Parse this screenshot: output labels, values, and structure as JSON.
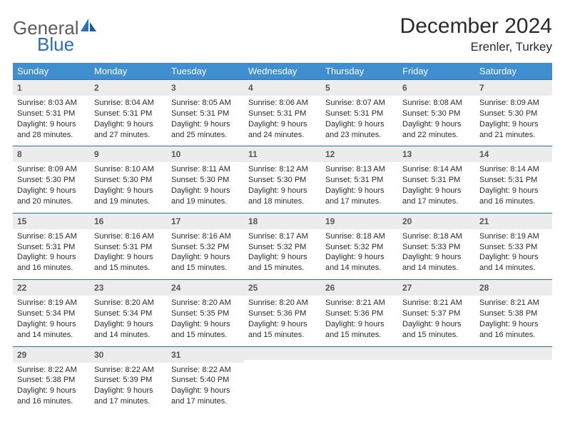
{
  "brand": {
    "general": "General",
    "blue": "Blue"
  },
  "title": "December 2024",
  "location": "Erenler, Turkey",
  "colors": {
    "header_bg": "#3f8fd0",
    "header_text": "#ffffff",
    "week_border": "#2970b8",
    "daynum_bg": "#ececec",
    "daynum_text": "#565656",
    "body_text": "#2b2b2b",
    "logo_gray": "#5c5c5c",
    "logo_blue": "#2970b8",
    "page_bg": "#ffffff"
  },
  "day_headers": [
    "Sunday",
    "Monday",
    "Tuesday",
    "Wednesday",
    "Thursday",
    "Friday",
    "Saturday"
  ],
  "weeks": [
    [
      {
        "num": "1",
        "sunrise": "Sunrise: 8:03 AM",
        "sunset": "Sunset: 5:31 PM",
        "day1": "Daylight: 9 hours",
        "day2": "and 28 minutes."
      },
      {
        "num": "2",
        "sunrise": "Sunrise: 8:04 AM",
        "sunset": "Sunset: 5:31 PM",
        "day1": "Daylight: 9 hours",
        "day2": "and 27 minutes."
      },
      {
        "num": "3",
        "sunrise": "Sunrise: 8:05 AM",
        "sunset": "Sunset: 5:31 PM",
        "day1": "Daylight: 9 hours",
        "day2": "and 25 minutes."
      },
      {
        "num": "4",
        "sunrise": "Sunrise: 8:06 AM",
        "sunset": "Sunset: 5:31 PM",
        "day1": "Daylight: 9 hours",
        "day2": "and 24 minutes."
      },
      {
        "num": "5",
        "sunrise": "Sunrise: 8:07 AM",
        "sunset": "Sunset: 5:31 PM",
        "day1": "Daylight: 9 hours",
        "day2": "and 23 minutes."
      },
      {
        "num": "6",
        "sunrise": "Sunrise: 8:08 AM",
        "sunset": "Sunset: 5:30 PM",
        "day1": "Daylight: 9 hours",
        "day2": "and 22 minutes."
      },
      {
        "num": "7",
        "sunrise": "Sunrise: 8:09 AM",
        "sunset": "Sunset: 5:30 PM",
        "day1": "Daylight: 9 hours",
        "day2": "and 21 minutes."
      }
    ],
    [
      {
        "num": "8",
        "sunrise": "Sunrise: 8:09 AM",
        "sunset": "Sunset: 5:30 PM",
        "day1": "Daylight: 9 hours",
        "day2": "and 20 minutes."
      },
      {
        "num": "9",
        "sunrise": "Sunrise: 8:10 AM",
        "sunset": "Sunset: 5:30 PM",
        "day1": "Daylight: 9 hours",
        "day2": "and 19 minutes."
      },
      {
        "num": "10",
        "sunrise": "Sunrise: 8:11 AM",
        "sunset": "Sunset: 5:30 PM",
        "day1": "Daylight: 9 hours",
        "day2": "and 19 minutes."
      },
      {
        "num": "11",
        "sunrise": "Sunrise: 8:12 AM",
        "sunset": "Sunset: 5:30 PM",
        "day1": "Daylight: 9 hours",
        "day2": "and 18 minutes."
      },
      {
        "num": "12",
        "sunrise": "Sunrise: 8:13 AM",
        "sunset": "Sunset: 5:31 PM",
        "day1": "Daylight: 9 hours",
        "day2": "and 17 minutes."
      },
      {
        "num": "13",
        "sunrise": "Sunrise: 8:14 AM",
        "sunset": "Sunset: 5:31 PM",
        "day1": "Daylight: 9 hours",
        "day2": "and 17 minutes."
      },
      {
        "num": "14",
        "sunrise": "Sunrise: 8:14 AM",
        "sunset": "Sunset: 5:31 PM",
        "day1": "Daylight: 9 hours",
        "day2": "and 16 minutes."
      }
    ],
    [
      {
        "num": "15",
        "sunrise": "Sunrise: 8:15 AM",
        "sunset": "Sunset: 5:31 PM",
        "day1": "Daylight: 9 hours",
        "day2": "and 16 minutes."
      },
      {
        "num": "16",
        "sunrise": "Sunrise: 8:16 AM",
        "sunset": "Sunset: 5:31 PM",
        "day1": "Daylight: 9 hours",
        "day2": "and 15 minutes."
      },
      {
        "num": "17",
        "sunrise": "Sunrise: 8:16 AM",
        "sunset": "Sunset: 5:32 PM",
        "day1": "Daylight: 9 hours",
        "day2": "and 15 minutes."
      },
      {
        "num": "18",
        "sunrise": "Sunrise: 8:17 AM",
        "sunset": "Sunset: 5:32 PM",
        "day1": "Daylight: 9 hours",
        "day2": "and 15 minutes."
      },
      {
        "num": "19",
        "sunrise": "Sunrise: 8:18 AM",
        "sunset": "Sunset: 5:32 PM",
        "day1": "Daylight: 9 hours",
        "day2": "and 14 minutes."
      },
      {
        "num": "20",
        "sunrise": "Sunrise: 8:18 AM",
        "sunset": "Sunset: 5:33 PM",
        "day1": "Daylight: 9 hours",
        "day2": "and 14 minutes."
      },
      {
        "num": "21",
        "sunrise": "Sunrise: 8:19 AM",
        "sunset": "Sunset: 5:33 PM",
        "day1": "Daylight: 9 hours",
        "day2": "and 14 minutes."
      }
    ],
    [
      {
        "num": "22",
        "sunrise": "Sunrise: 8:19 AM",
        "sunset": "Sunset: 5:34 PM",
        "day1": "Daylight: 9 hours",
        "day2": "and 14 minutes."
      },
      {
        "num": "23",
        "sunrise": "Sunrise: 8:20 AM",
        "sunset": "Sunset: 5:34 PM",
        "day1": "Daylight: 9 hours",
        "day2": "and 14 minutes."
      },
      {
        "num": "24",
        "sunrise": "Sunrise: 8:20 AM",
        "sunset": "Sunset: 5:35 PM",
        "day1": "Daylight: 9 hours",
        "day2": "and 15 minutes."
      },
      {
        "num": "25",
        "sunrise": "Sunrise: 8:20 AM",
        "sunset": "Sunset: 5:36 PM",
        "day1": "Daylight: 9 hours",
        "day2": "and 15 minutes."
      },
      {
        "num": "26",
        "sunrise": "Sunrise: 8:21 AM",
        "sunset": "Sunset: 5:36 PM",
        "day1": "Daylight: 9 hours",
        "day2": "and 15 minutes."
      },
      {
        "num": "27",
        "sunrise": "Sunrise: 8:21 AM",
        "sunset": "Sunset: 5:37 PM",
        "day1": "Daylight: 9 hours",
        "day2": "and 15 minutes."
      },
      {
        "num": "28",
        "sunrise": "Sunrise: 8:21 AM",
        "sunset": "Sunset: 5:38 PM",
        "day1": "Daylight: 9 hours",
        "day2": "and 16 minutes."
      }
    ],
    [
      {
        "num": "29",
        "sunrise": "Sunrise: 8:22 AM",
        "sunset": "Sunset: 5:38 PM",
        "day1": "Daylight: 9 hours",
        "day2": "and 16 minutes."
      },
      {
        "num": "30",
        "sunrise": "Sunrise: 8:22 AM",
        "sunset": "Sunset: 5:39 PM",
        "day1": "Daylight: 9 hours",
        "day2": "and 17 minutes."
      },
      {
        "num": "31",
        "sunrise": "Sunrise: 8:22 AM",
        "sunset": "Sunset: 5:40 PM",
        "day1": "Daylight: 9 hours",
        "day2": "and 17 minutes."
      },
      {
        "empty": true
      },
      {
        "empty": true
      },
      {
        "empty": true
      },
      {
        "empty": true
      }
    ]
  ]
}
